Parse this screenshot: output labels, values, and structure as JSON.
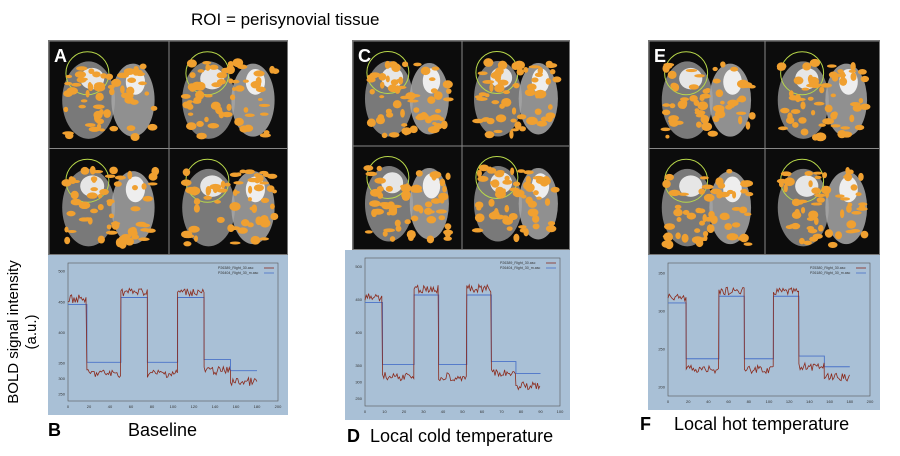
{
  "roi_annotation": "ROI = perisynovial tissue",
  "y_axis_label": {
    "line1": "BOLD signal intensity",
    "line2": "(a.u.)"
  },
  "panels": [
    {
      "letter_top": "A",
      "letter_bottom": "B",
      "caption": "Baseline",
      "legend": [
        "P26389_Right_30.asc",
        "P26404_Right_30_m.asc"
      ],
      "y_ticks": [
        "500",
        "",
        "450",
        "",
        "400",
        "",
        "350",
        "300",
        "250"
      ],
      "x_ticks": [
        "0",
        "20",
        "40",
        "60",
        "80",
        "100",
        "120",
        "140",
        "160",
        "180",
        "200"
      ]
    },
    {
      "letter_top": "C",
      "letter_bottom": "D",
      "caption": "Local cold temperature",
      "legend": [
        "P26389_Right_30.asc",
        "P26404_Right_30_m.asc"
      ],
      "y_ticks": [
        "500",
        "",
        "450",
        "",
        "400",
        "",
        "350",
        "300",
        "250"
      ],
      "x_ticks": [
        "0",
        "10",
        "20",
        "30",
        "40",
        "50",
        "60",
        "70",
        "80",
        "90",
        "100"
      ]
    },
    {
      "letter_top": "E",
      "letter_bottom": "F",
      "caption": "Local hot temperature",
      "legend": [
        "P25380_Right_30.asc",
        "P26180_Right_30_m.asc"
      ],
      "y_ticks": [
        "350",
        "",
        "300",
        "",
        "250",
        "",
        "200"
      ],
      "x_ticks": [
        "0",
        "20",
        "40",
        "60",
        "80",
        "100",
        "120",
        "140",
        "160",
        "180",
        "200"
      ]
    }
  ],
  "colors": {
    "measured": "#8b2a1c",
    "model": "#4a72c8",
    "activation": "#f0a030",
    "plot_bg": "#a9c0d6"
  }
}
